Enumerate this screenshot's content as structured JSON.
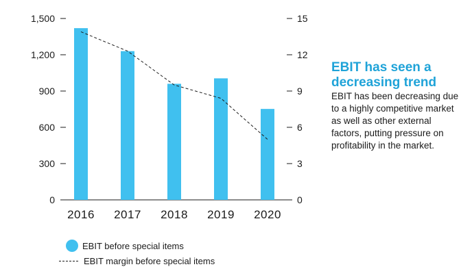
{
  "chart_data": {
    "type": "bar",
    "categories": [
      "2016",
      "2017",
      "2018",
      "2019",
      "2020"
    ],
    "series": [
      {
        "name": "EBIT before special items",
        "type": "bar",
        "axis": "left",
        "values": [
          1420,
          1230,
          960,
          1005,
          752
        ],
        "color": "#40c0ef"
      },
      {
        "name": "EBIT margin before special items",
        "type": "line",
        "axis": "right",
        "style": "dashed",
        "values": [
          13.9,
          12.3,
          9.5,
          8.4,
          5.0
        ],
        "color": "#1a1a1a"
      }
    ],
    "y_left": {
      "ylim": [
        0,
        1500
      ],
      "ticks": [
        0,
        300,
        600,
        900,
        1200,
        1500
      ],
      "tick_labels": [
        "0",
        "300",
        "600",
        "900",
        "1,200",
        "1,500"
      ]
    },
    "y_right": {
      "ylim": [
        0,
        15
      ],
      "ticks": [
        0,
        3,
        6,
        9,
        12,
        15
      ],
      "tick_labels": [
        "0",
        "3",
        "6",
        "9",
        "12",
        "15"
      ]
    },
    "grid": false,
    "legend_position": "bottom-left"
  },
  "legend": {
    "bar_label": "EBIT  before special items",
    "line_label": "EBIT margin  before special items"
  },
  "aside": {
    "title": "EBIT has seen a decreasing trend",
    "body": "EBIT has been decreasing due to a highly competitive market as well as other external factors, putting pressure on profitability in the market."
  }
}
